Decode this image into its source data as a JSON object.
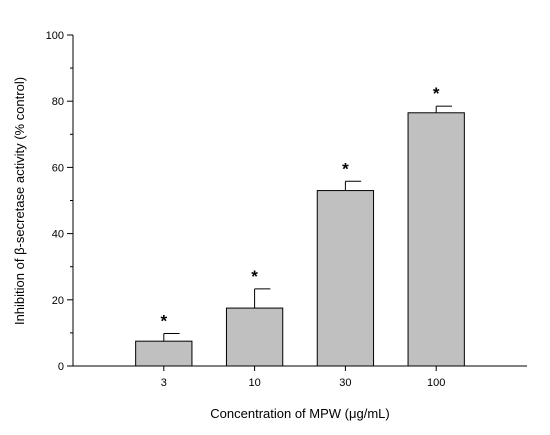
{
  "chart_data": {
    "type": "bar",
    "categories": [
      "3",
      "10",
      "30",
      "100"
    ],
    "values": [
      7.5,
      17.5,
      53,
      76.5
    ],
    "errors": [
      2.3,
      5.8,
      2.8,
      2.0
    ],
    "annotations": [
      "*",
      "*",
      "*",
      "*"
    ],
    "xlabel": "Concentration of MPW (μg/mL)",
    "ylabel": "Inhibition of β-secretase activity (% control)",
    "ylim": [
      0,
      100
    ],
    "yticks": [
      "0",
      "20",
      "40",
      "60",
      "80",
      "100"
    ],
    "grid": false,
    "bar_color": "#c0c0c0"
  }
}
